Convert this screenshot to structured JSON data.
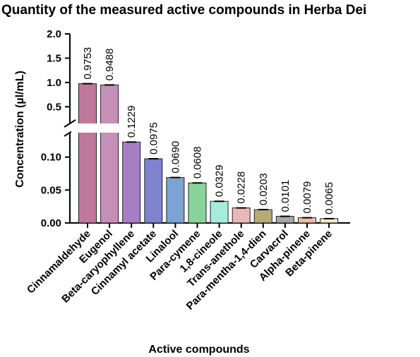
{
  "chart_data": {
    "type": "bar",
    "title": "Quantity of the measured active compounds in Herba Dei",
    "xlabel": "Active compounds",
    "ylabel": "Concentration (µl/mL)",
    "categories": [
      "Cinnamaldehyde",
      "Eugenol",
      "Beta-caryophyllene",
      "Cinnamyl acetate",
      "Linalool",
      "Para-cymene",
      "1,8-cineole",
      "Trans-anethole",
      "Para-mentha-1,4-dien",
      "Carvacrol",
      "Alpha-pinene",
      "Beta-pinene"
    ],
    "values": [
      0.9753,
      0.9488,
      0.1229,
      0.0975,
      0.069,
      0.0608,
      0.0329,
      0.0228,
      0.0203,
      0.0101,
      0.0079,
      0.0065
    ],
    "data_labels": [
      "0.9753",
      "0.9488",
      "0.1229",
      "0.0975",
      "0.0690",
      "0.0608",
      "0.0329",
      "0.0228",
      "0.0203",
      "0.0101",
      "0.0079",
      "0.0065"
    ],
    "bar_colors": [
      "#C0789A",
      "#C58FB8",
      "#A77EC6",
      "#7F82CC",
      "#7BA3D4",
      "#8AD39A",
      "#A6ECDD",
      "#E9B8B6",
      "#B7AA79",
      "#A6A6A6",
      "#EDBCA8",
      "#F2E9C4"
    ],
    "y_axis_broken": true,
    "ylim_lower": [
      0,
      0.135
    ],
    "ylim_upper": [
      0.2,
      2.0
    ],
    "yticks_lower": [
      "0.00",
      "0.05",
      "0.10"
    ],
    "yticks_upper": [
      "0.5",
      "1.0",
      "1.5",
      "2.0"
    ],
    "error_bars": true,
    "grid": false,
    "legend": "none"
  }
}
